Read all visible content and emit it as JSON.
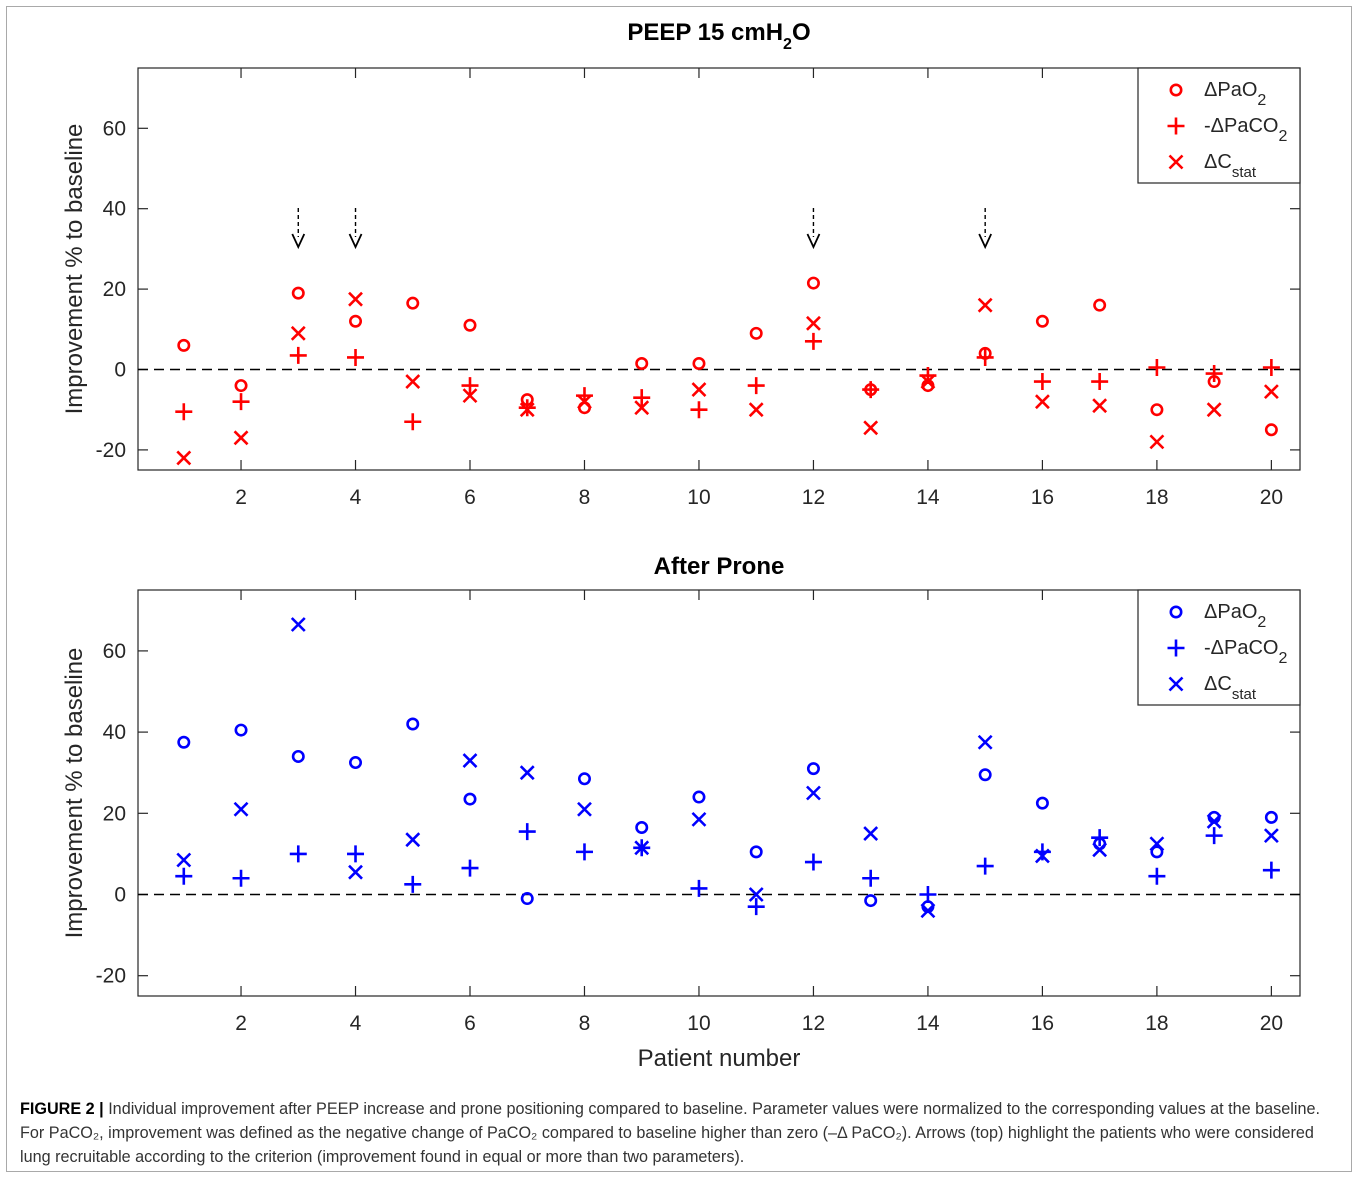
{
  "caption": {
    "label": "FIGURE 2 |",
    "text": "Individual improvement after PEEP increase and prone positioning compared to baseline. Parameter values were normalized to the corresponding values at the baseline. For PaCO₂, improvement was defined as the negative change of PaCO₂ compared to baseline higher than zero (–Δ PaCO₂). Arrows (top) highlight the patients who were considered lung recruitable according to the criterion (improvement found in equal or more than two parameters)."
  },
  "colors": {
    "top": "#ff0000",
    "bottom": "#0000ff",
    "arrow": "#000000"
  },
  "chart_data": [
    {
      "type": "scatter",
      "title": "PEEP 15 cmH₂O",
      "ylabel": "Improvement % to baseline",
      "xlabel": "",
      "xlim": [
        0.2,
        20.5
      ],
      "ylim": [
        -25,
        75
      ],
      "xticks": [
        2,
        4,
        6,
        8,
        10,
        12,
        14,
        16,
        18,
        20
      ],
      "yticks": [
        -20,
        0,
        20,
        40,
        60
      ],
      "reference_line": 0,
      "legend_position": "top-right",
      "arrows_at_patients": [
        3,
        4,
        12,
        15
      ],
      "x": [
        1,
        2,
        3,
        4,
        5,
        6,
        7,
        8,
        9,
        10,
        11,
        12,
        13,
        14,
        15,
        16,
        17,
        18,
        19,
        20
      ],
      "series": [
        {
          "name": "ΔPaO₂",
          "marker": "circle",
          "values": [
            6,
            -4,
            19,
            12,
            16.5,
            11,
            -7.5,
            -9.5,
            1.5,
            1.5,
            9,
            21.5,
            -5,
            -4,
            4,
            12,
            16,
            -10,
            -3,
            -15
          ]
        },
        {
          "name": "-ΔPaCO₂",
          "marker": "plus",
          "values": [
            -10.5,
            -8,
            3.5,
            3,
            -13,
            -4,
            -9.5,
            -6.5,
            -7,
            -10,
            -4,
            7,
            -5,
            -1.5,
            3,
            -3,
            -3,
            0.5,
            -1,
            0.5
          ]
        },
        {
          "name": "ΔCstat",
          "marker": "x",
          "values": [
            -22,
            -17,
            9,
            17.5,
            -3,
            -6.5,
            -10,
            -8,
            -9.5,
            -5,
            -10,
            11.5,
            -14.5,
            -3,
            16,
            -8,
            -9,
            -18,
            -10,
            -5.5
          ]
        }
      ]
    },
    {
      "type": "scatter",
      "title": "After Prone",
      "ylabel": "Improvement % to baseline",
      "xlabel": "Patient number",
      "xlim": [
        0.2,
        20.5
      ],
      "ylim": [
        -25,
        75
      ],
      "xticks": [
        2,
        4,
        6,
        8,
        10,
        12,
        14,
        16,
        18,
        20
      ],
      "yticks": [
        -20,
        0,
        20,
        40,
        60
      ],
      "reference_line": 0,
      "legend_position": "top-right",
      "x": [
        1,
        2,
        3,
        4,
        5,
        6,
        7,
        8,
        9,
        10,
        11,
        12,
        13,
        14,
        15,
        16,
        17,
        18,
        19,
        20
      ],
      "series": [
        {
          "name": "ΔPaO₂",
          "marker": "circle",
          "values": [
            37.5,
            40.5,
            34,
            32.5,
            42,
            23.5,
            -1,
            28.5,
            16.5,
            24,
            10.5,
            31,
            -1.5,
            -3,
            29.5,
            22.5,
            12.5,
            10.5,
            19,
            19
          ]
        },
        {
          "name": "-ΔPaCO₂",
          "marker": "plus",
          "values": [
            4.5,
            4,
            10,
            10,
            2.5,
            6.5,
            15.5,
            10.5,
            11.5,
            1.5,
            -3,
            8,
            4,
            0,
            7,
            10.5,
            14,
            4.5,
            14.5,
            6
          ]
        },
        {
          "name": "ΔCstat",
          "marker": "x",
          "values": [
            8.5,
            21,
            66.5,
            5.5,
            13.5,
            33,
            30,
            21,
            11.5,
            18.5,
            0,
            25,
            15,
            -4,
            37.5,
            9.5,
            11,
            12.5,
            18,
            14.5
          ]
        }
      ]
    }
  ]
}
